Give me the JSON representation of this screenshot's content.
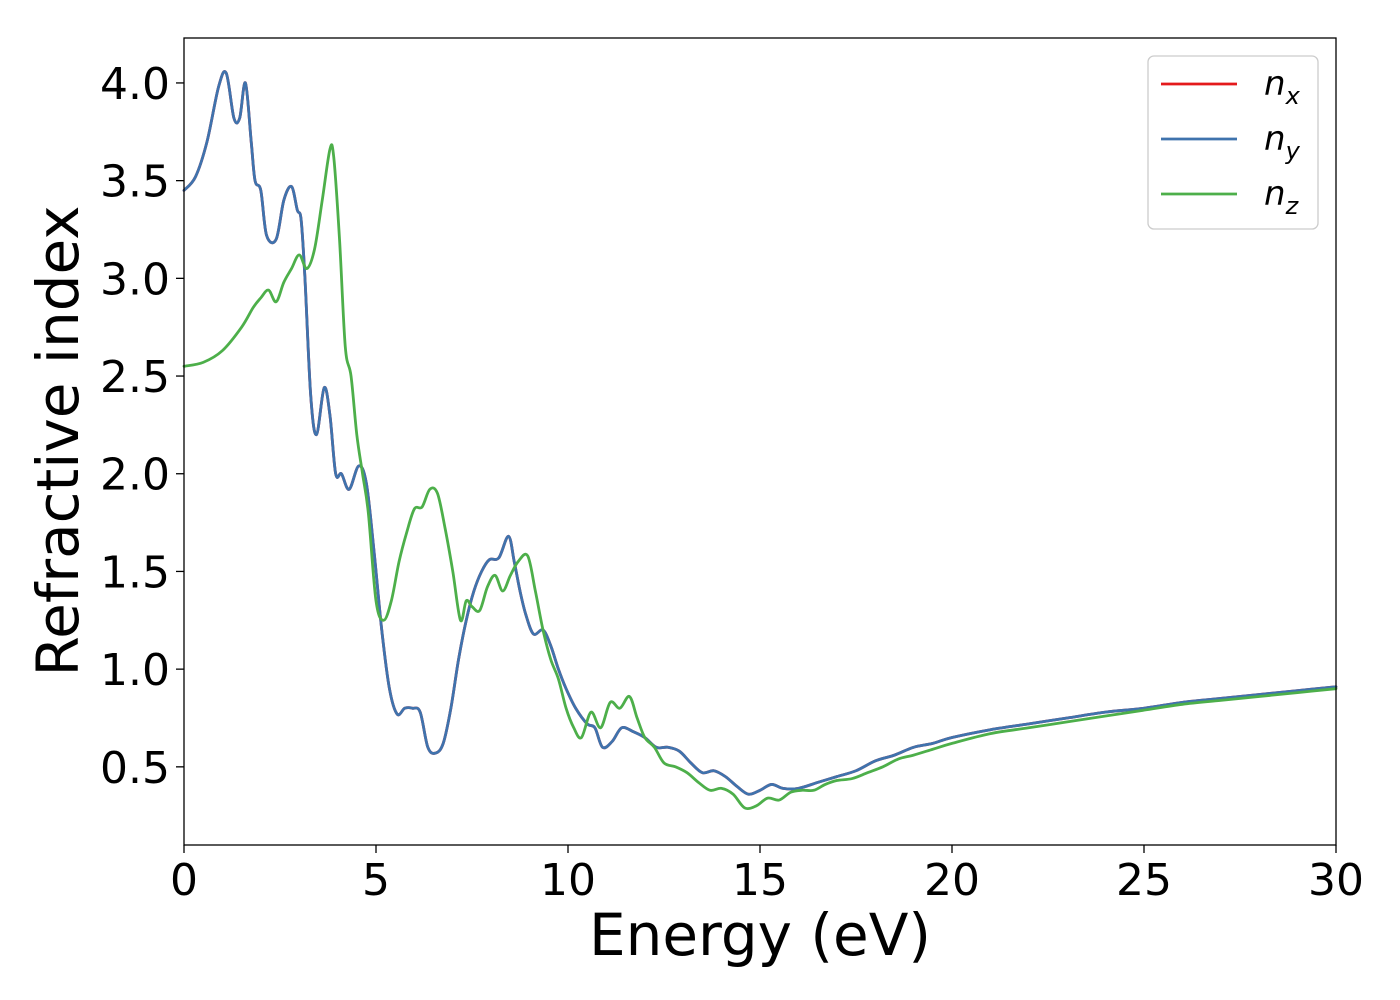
{
  "chart_data": {
    "type": "line",
    "title": "",
    "xlabel": "Energy (eV)",
    "ylabel": "Refractive index",
    "xlim": [
      0,
      30
    ],
    "ylim": [
      0.1,
      4.23
    ],
    "x_ticks": [
      "0",
      "5",
      "10",
      "15",
      "20",
      "25",
      "30"
    ],
    "y_ticks": [
      "0.5",
      "1.0",
      "1.5",
      "2.0",
      "2.5",
      "3.0",
      "3.5",
      "4.0"
    ],
    "grid": false,
    "legend_position": "top-right",
    "series": [
      {
        "name_base": "n",
        "name_sub": "x",
        "color": "#e41a1c",
        "x": [
          0,
          0.3,
          0.6,
          0.9,
          1.1,
          1.3,
          1.45,
          1.6,
          1.75,
          1.85,
          2.0,
          2.15,
          2.4,
          2.6,
          2.8,
          2.95,
          3.05,
          3.15,
          3.3,
          3.45,
          3.65,
          3.8,
          3.95,
          4.1,
          4.3,
          4.55,
          4.75,
          4.95,
          5.15,
          5.35,
          5.55,
          5.75,
          5.95,
          6.15,
          6.35,
          6.55,
          6.75,
          6.95,
          7.15,
          7.35,
          7.55,
          7.75,
          7.95,
          8.2,
          8.45,
          8.6,
          8.75,
          8.9,
          9.1,
          9.35,
          9.55,
          9.75,
          9.95,
          10.2,
          10.5,
          10.7,
          10.9,
          11.15,
          11.4,
          11.7,
          12.0,
          12.3,
          12.6,
          12.9,
          13.2,
          13.5,
          13.8,
          14.1,
          14.4,
          14.7,
          15.0,
          15.3,
          15.6,
          16.0,
          16.5,
          17.0,
          17.5,
          18.0,
          18.5,
          19.0,
          19.5,
          20.0,
          21.0,
          22.0,
          23.0,
          24.0,
          25.0,
          26.0,
          27.0,
          28.0,
          29.0,
          30.0
        ],
        "y": [
          3.45,
          3.52,
          3.7,
          3.98,
          4.05,
          3.82,
          3.82,
          4.0,
          3.7,
          3.5,
          3.45,
          3.22,
          3.2,
          3.4,
          3.47,
          3.35,
          3.3,
          3.0,
          2.4,
          2.2,
          2.44,
          2.3,
          2.0,
          2.0,
          1.92,
          2.04,
          1.95,
          1.6,
          1.2,
          0.9,
          0.77,
          0.8,
          0.8,
          0.78,
          0.6,
          0.57,
          0.62,
          0.8,
          1.05,
          1.25,
          1.4,
          1.5,
          1.56,
          1.57,
          1.68,
          1.55,
          1.4,
          1.28,
          1.18,
          1.2,
          1.12,
          1.0,
          0.9,
          0.8,
          0.72,
          0.7,
          0.6,
          0.63,
          0.7,
          0.68,
          0.65,
          0.6,
          0.6,
          0.58,
          0.52,
          0.47,
          0.48,
          0.45,
          0.4,
          0.36,
          0.38,
          0.41,
          0.39,
          0.39,
          0.42,
          0.45,
          0.48,
          0.53,
          0.56,
          0.6,
          0.62,
          0.65,
          0.69,
          0.72,
          0.75,
          0.78,
          0.8,
          0.83,
          0.85,
          0.87,
          0.89,
          0.91
        ]
      },
      {
        "name_base": "n",
        "name_sub": "y",
        "color": "#3f73ad",
        "x": [
          0,
          0.3,
          0.6,
          0.9,
          1.1,
          1.3,
          1.45,
          1.6,
          1.75,
          1.85,
          2.0,
          2.15,
          2.4,
          2.6,
          2.8,
          2.95,
          3.05,
          3.15,
          3.3,
          3.45,
          3.65,
          3.8,
          3.95,
          4.1,
          4.3,
          4.55,
          4.75,
          4.95,
          5.15,
          5.35,
          5.55,
          5.75,
          5.95,
          6.15,
          6.35,
          6.55,
          6.75,
          6.95,
          7.15,
          7.35,
          7.55,
          7.75,
          7.95,
          8.2,
          8.45,
          8.6,
          8.75,
          8.9,
          9.1,
          9.35,
          9.55,
          9.75,
          9.95,
          10.2,
          10.5,
          10.7,
          10.9,
          11.15,
          11.4,
          11.7,
          12.0,
          12.3,
          12.6,
          12.9,
          13.2,
          13.5,
          13.8,
          14.1,
          14.4,
          14.7,
          15.0,
          15.3,
          15.6,
          16.0,
          16.5,
          17.0,
          17.5,
          18.0,
          18.5,
          19.0,
          19.5,
          20.0,
          21.0,
          22.0,
          23.0,
          24.0,
          25.0,
          26.0,
          27.0,
          28.0,
          29.0,
          30.0
        ],
        "y": [
          3.45,
          3.52,
          3.7,
          3.98,
          4.05,
          3.82,
          3.82,
          4.0,
          3.7,
          3.5,
          3.45,
          3.22,
          3.2,
          3.4,
          3.47,
          3.35,
          3.3,
          3.0,
          2.4,
          2.2,
          2.44,
          2.3,
          2.0,
          2.0,
          1.92,
          2.04,
          1.95,
          1.6,
          1.2,
          0.9,
          0.77,
          0.8,
          0.8,
          0.78,
          0.6,
          0.57,
          0.62,
          0.8,
          1.05,
          1.25,
          1.4,
          1.5,
          1.56,
          1.57,
          1.68,
          1.55,
          1.4,
          1.28,
          1.18,
          1.2,
          1.12,
          1.0,
          0.9,
          0.8,
          0.72,
          0.7,
          0.6,
          0.63,
          0.7,
          0.68,
          0.65,
          0.6,
          0.6,
          0.58,
          0.52,
          0.47,
          0.48,
          0.45,
          0.4,
          0.36,
          0.38,
          0.41,
          0.39,
          0.39,
          0.42,
          0.45,
          0.48,
          0.53,
          0.56,
          0.6,
          0.62,
          0.65,
          0.69,
          0.72,
          0.75,
          0.78,
          0.8,
          0.83,
          0.85,
          0.87,
          0.89,
          0.91
        ]
      },
      {
        "name_base": "n",
        "name_sub": "z",
        "color": "#4daf4a",
        "x": [
          0,
          0.5,
          1.0,
          1.5,
          1.8,
          2.0,
          2.2,
          2.4,
          2.6,
          2.8,
          3.0,
          3.2,
          3.4,
          3.6,
          3.8,
          3.9,
          4.05,
          4.2,
          4.35,
          4.5,
          4.65,
          4.8,
          5.0,
          5.2,
          5.4,
          5.6,
          5.8,
          6.0,
          6.2,
          6.4,
          6.6,
          6.8,
          7.0,
          7.2,
          7.35,
          7.5,
          7.7,
          7.9,
          8.1,
          8.3,
          8.5,
          8.7,
          8.95,
          9.15,
          9.35,
          9.55,
          9.75,
          9.95,
          10.15,
          10.35,
          10.6,
          10.85,
          11.1,
          11.35,
          11.6,
          11.8,
          12.0,
          12.25,
          12.5,
          12.8,
          13.1,
          13.4,
          13.7,
          14.0,
          14.3,
          14.6,
          14.9,
          15.2,
          15.5,
          15.8,
          16.1,
          16.4,
          16.7,
          17.0,
          17.4,
          17.8,
          18.2,
          18.6,
          19.0,
          19.5,
          20.0,
          21.0,
          22.0,
          23.0,
          24.0,
          25.0,
          26.0,
          27.0,
          28.0,
          29.0,
          30.0
        ],
        "y": [
          2.55,
          2.57,
          2.63,
          2.75,
          2.85,
          2.9,
          2.94,
          2.88,
          2.98,
          3.05,
          3.12,
          3.05,
          3.15,
          3.4,
          3.66,
          3.62,
          3.2,
          2.65,
          2.5,
          2.2,
          2.0,
          1.8,
          1.35,
          1.25,
          1.35,
          1.55,
          1.7,
          1.82,
          1.83,
          1.92,
          1.9,
          1.72,
          1.5,
          1.25,
          1.35,
          1.32,
          1.3,
          1.42,
          1.48,
          1.4,
          1.48,
          1.55,
          1.58,
          1.4,
          1.2,
          1.05,
          0.95,
          0.8,
          0.7,
          0.65,
          0.78,
          0.7,
          0.83,
          0.8,
          0.86,
          0.75,
          0.65,
          0.6,
          0.52,
          0.5,
          0.47,
          0.42,
          0.38,
          0.39,
          0.36,
          0.29,
          0.3,
          0.34,
          0.33,
          0.37,
          0.38,
          0.38,
          0.41,
          0.43,
          0.44,
          0.47,
          0.5,
          0.54,
          0.56,
          0.59,
          0.62,
          0.67,
          0.7,
          0.73,
          0.76,
          0.79,
          0.82,
          0.84,
          0.86,
          0.88,
          0.9
        ]
      }
    ]
  }
}
